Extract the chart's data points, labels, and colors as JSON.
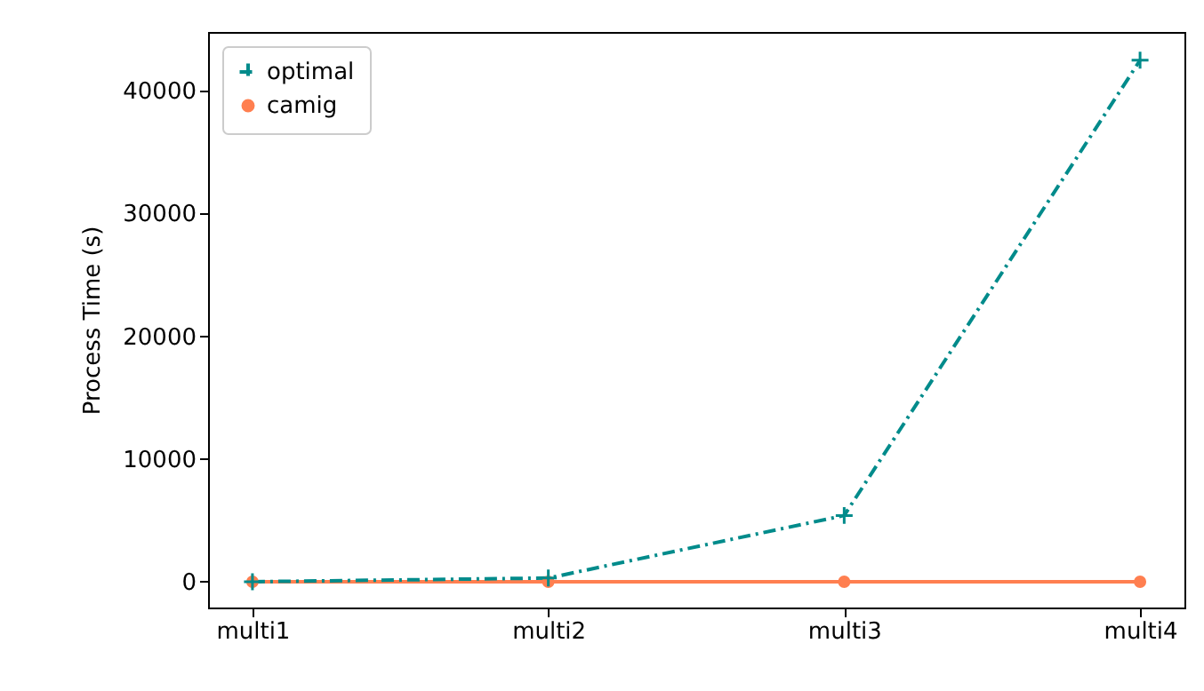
{
  "chart_data": {
    "type": "line",
    "ylabel": "Process Time (s)",
    "categories": [
      "multi1",
      "multi2",
      "multi3",
      "multi4"
    ],
    "series": [
      {
        "name": "optimal",
        "color": "#008b8b",
        "values": [
          0,
          300,
          5400,
          42500
        ],
        "marker": "cross",
        "line_style": "dashed"
      },
      {
        "name": "camig",
        "color": "#ff7f50",
        "values": [
          0,
          0,
          0,
          0
        ],
        "marker": "circle",
        "line_style": "solid"
      }
    ],
    "ylim": [
      -2100,
      44800
    ],
    "yticks": [
      0,
      10000,
      20000,
      30000,
      40000
    ],
    "grid": false,
    "legend": "top left"
  }
}
